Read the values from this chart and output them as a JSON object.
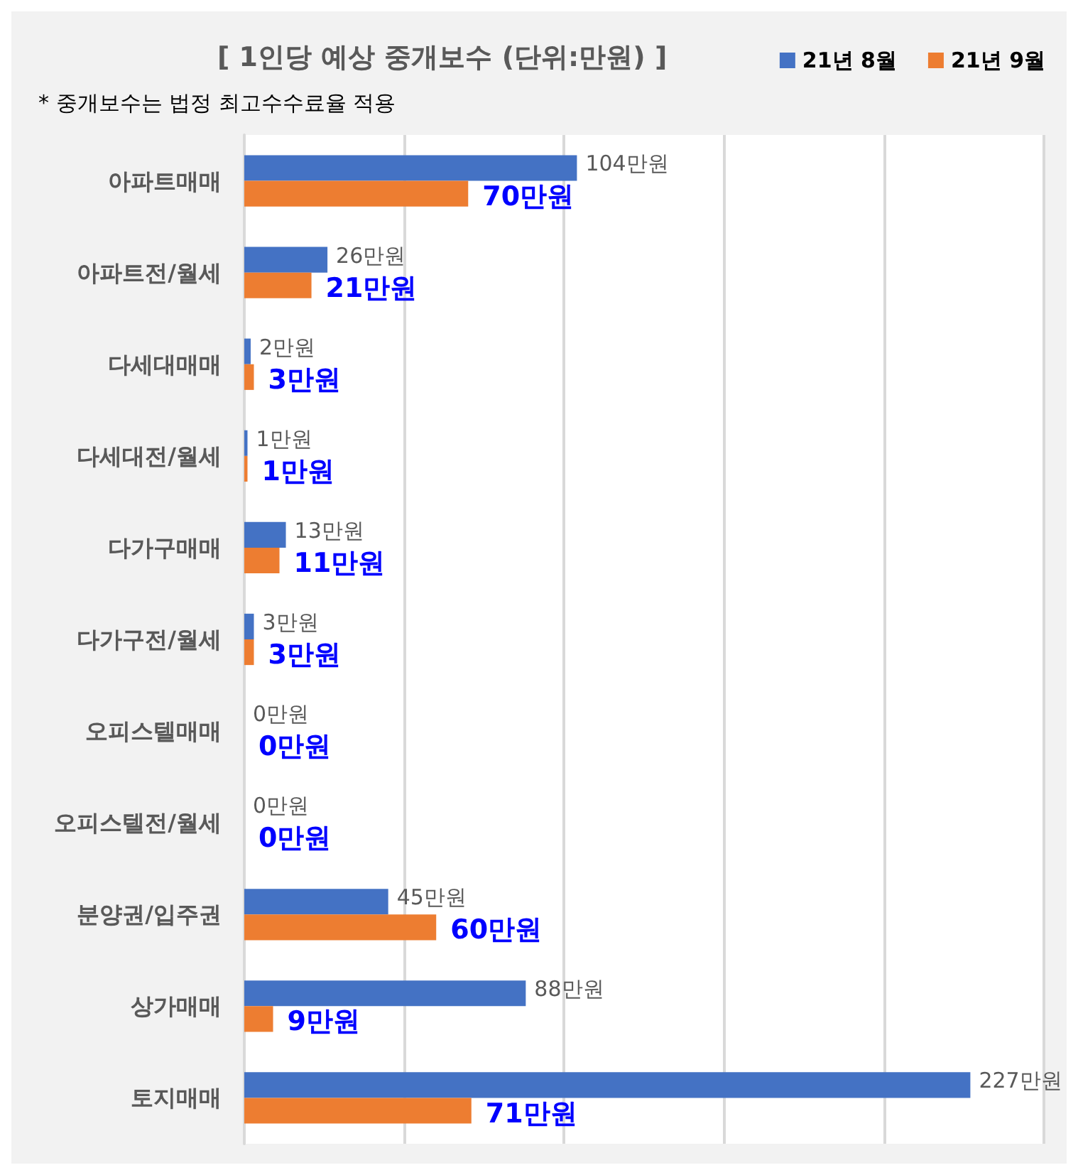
{
  "chart_data": {
    "type": "bar",
    "orientation": "horizontal",
    "title": "[ 1인당 예상 중개보수 (단위:만원) ]",
    "subtitle": "* 중개보수는 법정 최고수수료율 적용",
    "categories": [
      "아파트매매",
      "아파트전/월세",
      "다세대매매",
      "다세대전/월세",
      "다가구매매",
      "다가구전/월세",
      "오피스텔매매",
      "오피스텔전/월세",
      "분양권/입주권",
      "상가매매",
      "토지매매"
    ],
    "series": [
      {
        "name": "21년 8월",
        "color": "#4472c4",
        "values": [
          104,
          26,
          2,
          1,
          13,
          3,
          0,
          0,
          45,
          88,
          227
        ],
        "value_labels": [
          "104만원",
          "26만원",
          "2만원",
          "1만원",
          "13만원",
          "3만원",
          "0만원",
          "0만원",
          "45만원",
          "88만원",
          "227만원"
        ]
      },
      {
        "name": "21년 9월",
        "color": "#ed7d31",
        "values": [
          70,
          21,
          3,
          1,
          11,
          3,
          0,
          0,
          60,
          9,
          71
        ],
        "value_labels": [
          "70만원",
          "21만원",
          "3만원",
          "1만원",
          "11만원",
          "3만원",
          "0만원",
          "0만원",
          "60만원",
          "9만원",
          "71만원"
        ]
      }
    ],
    "xlim": [
      0,
      250
    ],
    "xticks": [
      {
        "value": 0,
        "label": null
      },
      {
        "value": 50,
        "label": null
      },
      {
        "value": 100,
        "label": null
      },
      {
        "value": 150,
        "label": null
      },
      {
        "value": 200,
        "label": null
      },
      {
        "value": 250,
        "label": null
      }
    ],
    "grid": "x",
    "legend": "top right",
    "tick_labels": "y"
  }
}
